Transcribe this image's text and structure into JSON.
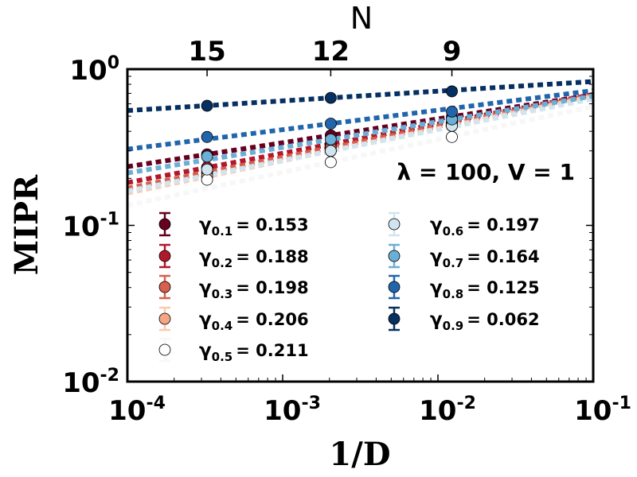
{
  "chart_data": {
    "type": "scatter",
    "scale": {
      "x": "log",
      "y": "log"
    },
    "xlim": [
      0.0001,
      0.1
    ],
    "ylim": [
      0.01,
      1
    ],
    "xlabel": "1/D",
    "ylabel": "MIPR",
    "top_axis": {
      "label": "N",
      "ticks": [
        {
          "at": 0.000326,
          "label": "15"
        },
        {
          "at": 0.00204,
          "label": "12"
        },
        {
          "at": 0.0123,
          "label": "9"
        }
      ]
    },
    "xtick_labels": [
      {
        "value": 0.0001,
        "base": "10",
        "exp": "-4"
      },
      {
        "value": 0.001,
        "base": "10",
        "exp": "-3"
      },
      {
        "value": 0.01,
        "base": "10",
        "exp": "-2"
      },
      {
        "value": 0.1,
        "base": "10",
        "exp": "-1"
      }
    ],
    "ytick_labels": [
      {
        "value": 1,
        "base": "10",
        "exp": "0"
      },
      {
        "value": 0.1,
        "base": "10",
        "exp": "-1"
      },
      {
        "value": 0.01,
        "base": "10",
        "exp": "-2"
      }
    ],
    "annotation": "λ = 100, V = 1",
    "x": [
      0.000326,
      0.00204,
      0.0123
    ],
    "legend_layout": "two columns, lower half of plot",
    "series": [
      {
        "name": "γ",
        "subscript": "0.1",
        "value_text": "= 0.153",
        "exponent": 0.153,
        "color": "#67001f",
        "y": [
          0.285,
          0.377,
          0.495
        ]
      },
      {
        "name": "γ",
        "subscript": "0.2",
        "value_text": "= 0.188",
        "exponent": 0.188,
        "color": "#b2182b",
        "y": [
          0.235,
          0.331,
          0.461
        ]
      },
      {
        "name": "γ",
        "subscript": "0.3",
        "value_text": "= 0.198",
        "exponent": 0.198,
        "color": "#d6604d",
        "y": [
          0.218,
          0.314,
          0.448
        ]
      },
      {
        "name": "γ",
        "subscript": "0.4",
        "value_text": "= 0.206",
        "exponent": 0.206,
        "color": "#f4a582",
        "y": [
          0.206,
          0.3,
          0.434
        ]
      },
      {
        "name": "γ",
        "subscript": "0.5",
        "value_text": "= 0.211",
        "exponent": 0.211,
        "color": "#ffffff",
        "y": [
          0.196,
          0.254,
          0.368
        ]
      },
      {
        "name": "γ",
        "subscript": "0.6",
        "value_text": "= 0.197",
        "exponent": 0.197,
        "color": "#d1e5f0",
        "y": [
          0.228,
          0.3,
          0.434
        ]
      },
      {
        "name": "γ",
        "subscript": "0.7",
        "value_text": "= 0.164",
        "exponent": 0.164,
        "color": "#6baed6",
        "y": [
          0.276,
          0.355,
          0.477
        ]
      },
      {
        "name": "γ",
        "subscript": "0.8",
        "value_text": "= 0.125",
        "exponent": 0.125,
        "color": "#2166ac",
        "y": [
          0.368,
          0.448,
          0.535
        ]
      },
      {
        "name": "γ",
        "subscript": "0.9",
        "value_text": "= 0.062",
        "exponent": 0.062,
        "color": "#053061",
        "y": [
          0.583,
          0.655,
          0.721
        ]
      }
    ],
    "fit_colors": [
      "#67001f",
      "#b2182b",
      "#d6604d",
      "#fcc9b0",
      "#f7f7f7",
      "#d1e5f0",
      "#6baed6",
      "#2166ac",
      "#053061"
    ]
  }
}
